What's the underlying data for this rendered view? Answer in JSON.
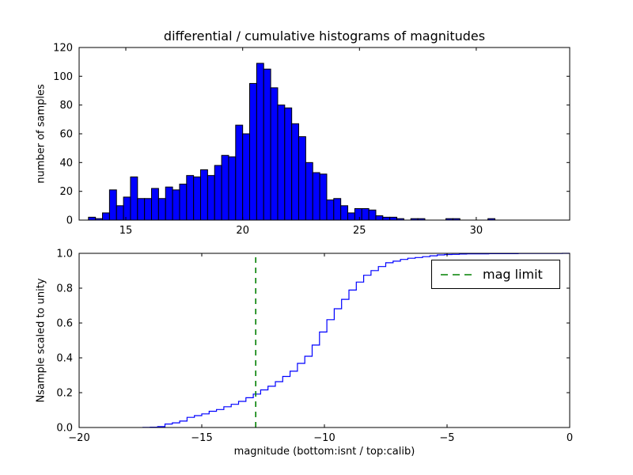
{
  "figure": {
    "title": "differential / cumulative histograms of magnitudes",
    "background": "#ffffff"
  },
  "colors": {
    "bar_fill": "#0000ff",
    "bar_edge": "#000000",
    "step_line": "#0000ff",
    "mag_limit_line": "#008000",
    "axes": "#000000",
    "text": "#000000"
  },
  "chart_data": [
    {
      "type": "bar",
      "id": "differential-histogram",
      "title": "differential / cumulative histograms of magnitudes",
      "ylabel": "number of samples",
      "xlim": [
        13,
        34
      ],
      "ylim": [
        0,
        120
      ],
      "xticks": [
        15,
        20,
        25,
        30
      ],
      "xtick_labels": [
        "15",
        "20",
        "25",
        "30"
      ],
      "yticks": [
        0,
        20,
        40,
        60,
        80,
        100,
        120
      ],
      "ytick_labels": [
        "0",
        "20",
        "40",
        "60",
        "80",
        "100",
        "120"
      ],
      "grid": false,
      "bins": {
        "start": 13.4,
        "width": 0.3
      },
      "counts": [
        2,
        1,
        5,
        21,
        10,
        16,
        30,
        15,
        15,
        22,
        15,
        23,
        21,
        25,
        31,
        30,
        35,
        31,
        38,
        45,
        44,
        66,
        60,
        95,
        109,
        105,
        92,
        80,
        78,
        67,
        58,
        40,
        33,
        32,
        14,
        15,
        10,
        5,
        8,
        8,
        7,
        3,
        2,
        2,
        1,
        0,
        1,
        1,
        0,
        0,
        0,
        1,
        1,
        0,
        0,
        0,
        0,
        1,
        0,
        0
      ]
    },
    {
      "type": "line",
      "id": "cumulative-histogram",
      "xlabel": "magnitude (bottom:isnt / top:calib)",
      "ylabel": "Nsample scaled to unity",
      "xlim": [
        -20,
        0
      ],
      "ylim": [
        0,
        1.0
      ],
      "xticks": [
        -20,
        -15,
        -10,
        -5,
        0
      ],
      "xtick_labels": [
        "−20",
        "−15",
        "−10",
        "−5",
        "0"
      ],
      "yticks": [
        0.0,
        0.2,
        0.4,
        0.6,
        0.8,
        1.0
      ],
      "ytick_labels": [
        "0.0",
        "0.2",
        "0.4",
        "0.6",
        "0.8",
        "1.0"
      ],
      "grid": false,
      "steps": {
        "start": -17.4,
        "width": 0.3
      },
      "fractions": [
        0.001,
        0.002,
        0.005,
        0.02,
        0.027,
        0.037,
        0.058,
        0.068,
        0.078,
        0.093,
        0.103,
        0.119,
        0.133,
        0.15,
        0.171,
        0.192,
        0.216,
        0.237,
        0.263,
        0.293,
        0.323,
        0.368,
        0.409,
        0.473,
        0.548,
        0.619,
        0.682,
        0.736,
        0.789,
        0.835,
        0.874,
        0.901,
        0.924,
        0.946,
        0.955,
        0.965,
        0.972,
        0.976,
        0.981,
        0.986,
        0.991,
        0.993,
        0.994,
        0.996,
        0.997,
        0.997,
        0.997,
        0.998,
        0.998,
        0.998,
        0.998,
        0.999,
        0.999,
        0.999,
        0.999,
        0.999,
        0.999,
        1.0,
        1.0,
        1.0
      ],
      "mag_limit": -12.8,
      "legend": {
        "label": "mag limit",
        "position": "upper right",
        "line_style": "dashed"
      }
    }
  ]
}
